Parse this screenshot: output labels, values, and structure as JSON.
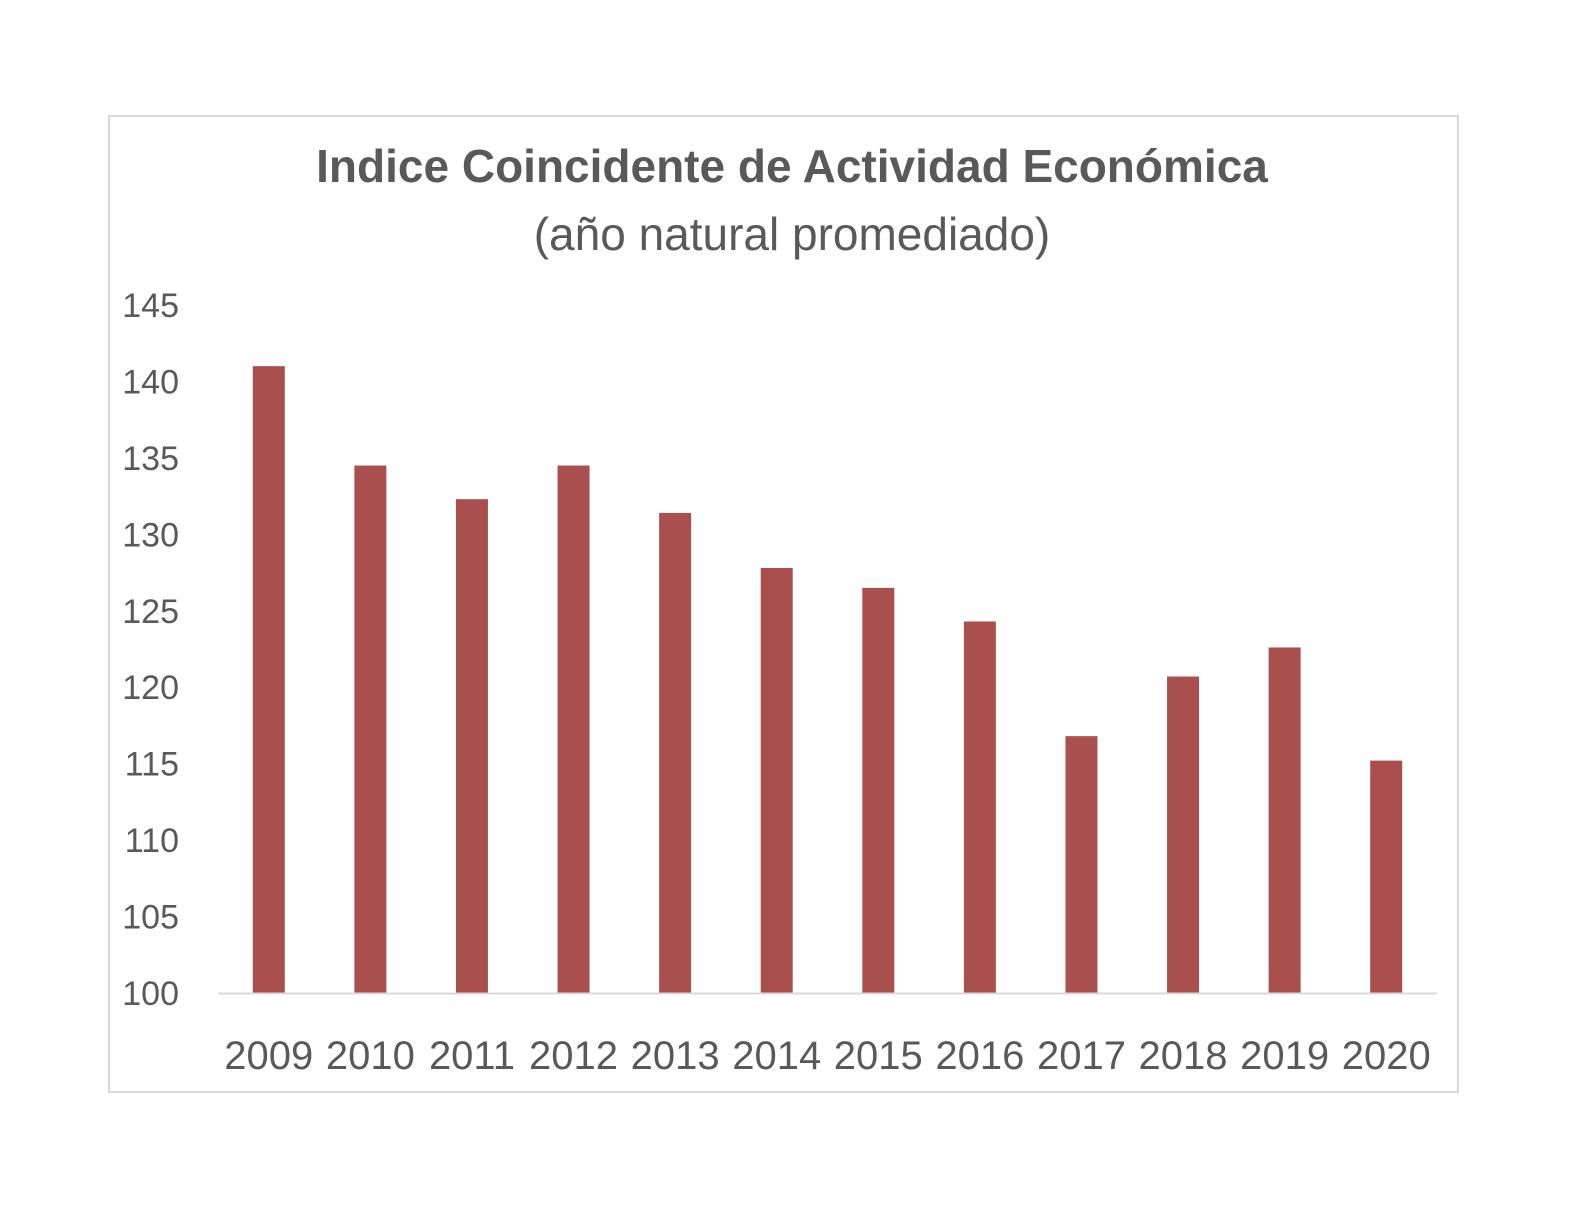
{
  "chart_data": {
    "type": "bar",
    "title": "Indice Coincidente de Actividad Económica",
    "subtitle": "(año natural promediado)",
    "xlabel": "",
    "ylabel": "",
    "categories": [
      "2009",
      "2010",
      "2011",
      "2012",
      "2013",
      "2014",
      "2015",
      "2016",
      "2017",
      "2018",
      "2019",
      "2020"
    ],
    "values": [
      141.0,
      134.5,
      132.3,
      134.5,
      131.4,
      127.8,
      126.5,
      124.3,
      116.8,
      120.7,
      122.6,
      115.2
    ],
    "ylim": [
      100,
      145
    ],
    "yticks": [
      100,
      105,
      110,
      115,
      120,
      125,
      130,
      135,
      140,
      145
    ],
    "grid": false,
    "legend": "none",
    "bar_color": "#a9504f"
  }
}
